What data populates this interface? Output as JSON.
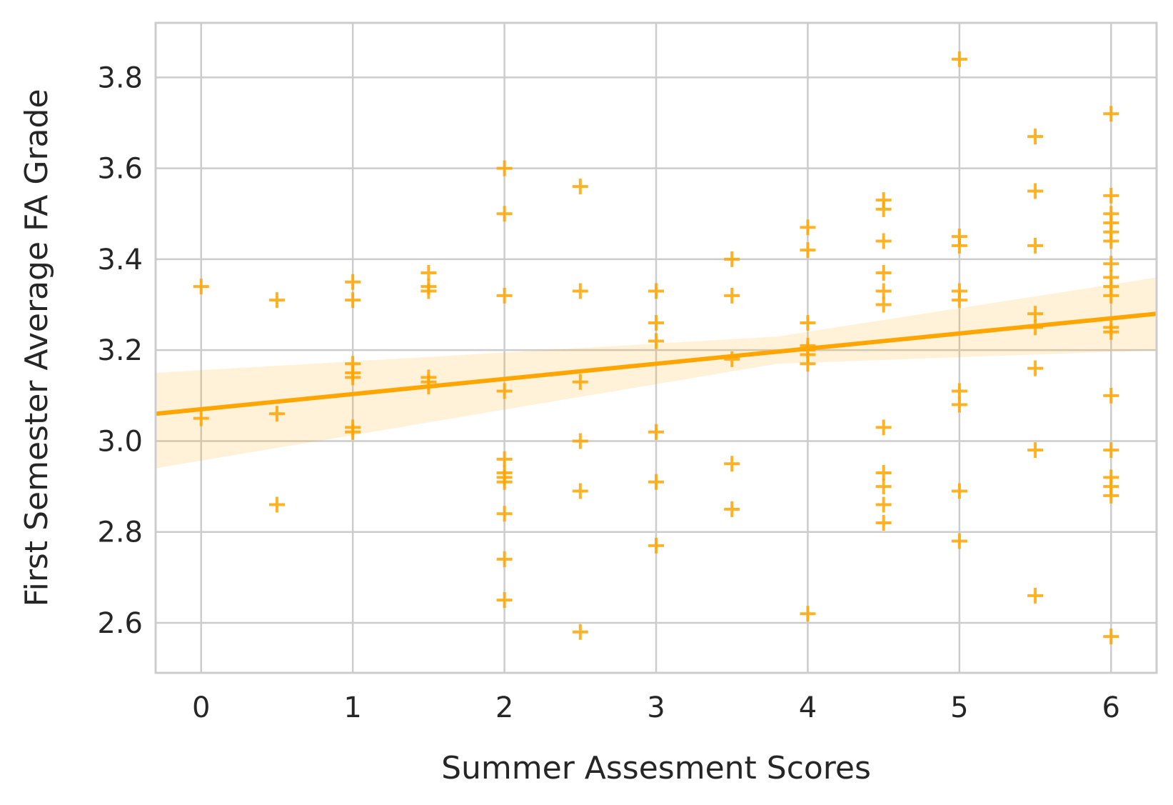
{
  "chart_data": {
    "type": "scatter",
    "title": "",
    "xlabel": "Summer Assesment Scores",
    "ylabel": "First Semester Average FA Grade",
    "xlim": [
      -0.3,
      6.3
    ],
    "ylim": [
      2.49,
      3.92
    ],
    "xticks": [
      "0",
      "1",
      "2",
      "3",
      "4",
      "5",
      "6"
    ],
    "yticks": [
      "2.6",
      "2.8",
      "3.0",
      "3.2",
      "3.4",
      "3.6",
      "3.8"
    ],
    "grid": true,
    "marker": "plus",
    "color": "#FFA500",
    "points": [
      [
        0,
        3.34
      ],
      [
        0,
        3.05
      ],
      [
        0.5,
        3.31
      ],
      [
        0.5,
        3.06
      ],
      [
        0.5,
        2.86
      ],
      [
        1,
        3.35
      ],
      [
        1,
        3.31
      ],
      [
        1,
        3.17
      ],
      [
        1,
        3.15
      ],
      [
        1,
        3.14
      ],
      [
        1,
        3.03
      ],
      [
        1,
        3.02
      ],
      [
        1.5,
        3.37
      ],
      [
        1.5,
        3.34
      ],
      [
        1.5,
        3.33
      ],
      [
        1.5,
        3.14
      ],
      [
        1.5,
        3.13
      ],
      [
        1.5,
        3.12
      ],
      [
        2,
        3.6
      ],
      [
        2,
        3.5
      ],
      [
        2,
        3.32
      ],
      [
        2,
        3.11
      ],
      [
        2,
        2.96
      ],
      [
        2,
        2.93
      ],
      [
        2,
        2.92
      ],
      [
        2,
        2.91
      ],
      [
        2,
        2.84
      ],
      [
        2,
        2.74
      ],
      [
        2,
        2.65
      ],
      [
        2.5,
        3.56
      ],
      [
        2.5,
        3.33
      ],
      [
        2.5,
        3.13
      ],
      [
        2.5,
        3.0
      ],
      [
        2.5,
        2.89
      ],
      [
        2.5,
        2.58
      ],
      [
        3,
        3.33
      ],
      [
        3,
        3.26
      ],
      [
        3,
        3.22
      ],
      [
        3,
        3.02
      ],
      [
        3,
        2.91
      ],
      [
        3,
        2.77
      ],
      [
        3.5,
        3.4
      ],
      [
        3.5,
        3.32
      ],
      [
        3.5,
        3.18
      ],
      [
        3.5,
        2.95
      ],
      [
        3.5,
        2.85
      ],
      [
        4,
        3.47
      ],
      [
        4,
        3.42
      ],
      [
        4,
        3.26
      ],
      [
        4,
        3.21
      ],
      [
        4,
        3.2
      ],
      [
        4,
        3.19
      ],
      [
        4,
        3.17
      ],
      [
        4,
        2.62
      ],
      [
        4.5,
        3.53
      ],
      [
        4.5,
        3.51
      ],
      [
        4.5,
        3.44
      ],
      [
        4.5,
        3.37
      ],
      [
        4.5,
        3.33
      ],
      [
        4.5,
        3.3
      ],
      [
        4.5,
        3.03
      ],
      [
        4.5,
        2.93
      ],
      [
        4.5,
        2.9
      ],
      [
        4.5,
        2.86
      ],
      [
        4.5,
        2.82
      ],
      [
        5,
        3.84
      ],
      [
        5,
        3.45
      ],
      [
        5,
        3.43
      ],
      [
        5,
        3.33
      ],
      [
        5,
        3.31
      ],
      [
        5,
        3.11
      ],
      [
        5,
        3.08
      ],
      [
        5,
        2.89
      ],
      [
        5,
        2.78
      ],
      [
        5.5,
        3.67
      ],
      [
        5.5,
        3.55
      ],
      [
        5.5,
        3.43
      ],
      [
        5.5,
        3.28
      ],
      [
        5.5,
        3.25
      ],
      [
        5.5,
        3.16
      ],
      [
        5.5,
        2.98
      ],
      [
        5.5,
        2.66
      ],
      [
        6,
        3.72
      ],
      [
        6,
        3.54
      ],
      [
        6,
        3.5
      ],
      [
        6,
        3.48
      ],
      [
        6,
        3.46
      ],
      [
        6,
        3.44
      ],
      [
        6,
        3.39
      ],
      [
        6,
        3.36
      ],
      [
        6,
        3.34
      ],
      [
        6,
        3.32
      ],
      [
        6,
        3.25
      ],
      [
        6,
        3.24
      ],
      [
        6,
        3.1
      ],
      [
        6,
        2.98
      ],
      [
        6,
        2.92
      ],
      [
        6,
        2.9
      ],
      [
        6,
        2.88
      ],
      [
        6,
        2.57
      ]
    ],
    "regression": {
      "x": [
        -0.3,
        6.3
      ],
      "y": [
        3.06,
        3.28
      ],
      "ci_lower": [
        2.94,
        3.2
      ],
      "ci_mid_x": 3.8,
      "ci_mid": [
        3.17,
        3.23
      ],
      "ci_upper": [
        3.15,
        3.36
      ],
      "line_color": "#FFA500",
      "band_color": "#FFA500"
    }
  }
}
